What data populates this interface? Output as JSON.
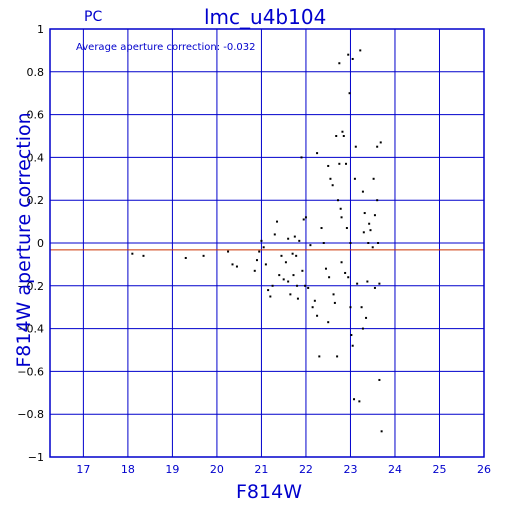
{
  "chart_data": {
    "type": "scatter",
    "panel_label": "PC",
    "title": "lmc_u4b104",
    "annotation": "Average aperture correction: -0.032",
    "xlabel": "F814W",
    "ylabel": "F814W aperture correction",
    "xlim": [
      16.25,
      26
    ],
    "ylim": [
      -1,
      1
    ],
    "xticks": [
      17,
      18,
      19,
      20,
      21,
      22,
      23,
      24,
      25,
      26
    ],
    "yticks": [
      -1,
      -0.8,
      -0.6,
      -0.4,
      -0.2,
      0,
      0.2,
      0.4,
      0.6,
      0.8,
      1
    ],
    "ytick_labels": [
      "−1",
      "−0.8",
      "−0.6",
      "−0.4",
      "−0.2",
      "0",
      "0.2",
      "0.4",
      "0.6",
      "0.8",
      "1"
    ],
    "grid": true,
    "reference_lines": [
      {
        "y": 0,
        "color": "#0000cc"
      },
      {
        "y": -0.032,
        "color": "#cc3300"
      }
    ],
    "colors": {
      "frame": "#0000cc",
      "text": "#0000cc",
      "points": "#000000",
      "average_line": "#cc3300"
    },
    "points": [
      [
        18.1,
        -0.05
      ],
      [
        18.35,
        -0.06
      ],
      [
        19.3,
        -0.07
      ],
      [
        19.7,
        -0.06
      ],
      [
        20.25,
        -0.04
      ],
      [
        20.35,
        -0.1
      ],
      [
        20.45,
        -0.11
      ],
      [
        20.85,
        -0.13
      ],
      [
        20.9,
        -0.08
      ],
      [
        20.95,
        -0.04
      ],
      [
        21.0,
        0.01
      ],
      [
        21.05,
        -0.02
      ],
      [
        21.1,
        -0.1
      ],
      [
        21.15,
        -0.22
      ],
      [
        21.2,
        -0.25
      ],
      [
        21.25,
        -0.2
      ],
      [
        21.3,
        0.04
      ],
      [
        21.35,
        0.1
      ],
      [
        21.4,
        -0.15
      ],
      [
        21.45,
        -0.06
      ],
      [
        21.5,
        -0.17
      ],
      [
        21.55,
        -0.09
      ],
      [
        21.6,
        0.02
      ],
      [
        21.6,
        -0.18
      ],
      [
        21.65,
        -0.24
      ],
      [
        21.7,
        -0.05
      ],
      [
        21.72,
        -0.15
      ],
      [
        21.75,
        0.03
      ],
      [
        21.78,
        -0.06
      ],
      [
        21.8,
        -0.2
      ],
      [
        21.82,
        -0.26
      ],
      [
        21.85,
        0.01
      ],
      [
        21.9,
        0.4
      ],
      [
        21.92,
        -0.13
      ],
      [
        21.95,
        0.11
      ],
      [
        21.98,
        -0.2
      ],
      [
        22.0,
        0.12
      ],
      [
        22.05,
        -0.21
      ],
      [
        22.1,
        -0.01
      ],
      [
        22.15,
        -0.3
      ],
      [
        22.2,
        -0.27
      ],
      [
        22.25,
        0.42
      ],
      [
        22.25,
        -0.34
      ],
      [
        22.3,
        -0.53
      ],
      [
        22.35,
        0.07
      ],
      [
        22.4,
        0.0
      ],
      [
        22.45,
        -0.12
      ],
      [
        22.5,
        -0.37
      ],
      [
        22.5,
        0.36
      ],
      [
        22.52,
        -0.16
      ],
      [
        22.55,
        0.3
      ],
      [
        22.6,
        0.27
      ],
      [
        22.62,
        -0.24
      ],
      [
        22.65,
        -0.28
      ],
      [
        22.68,
        0.5
      ],
      [
        22.7,
        -0.53
      ],
      [
        22.72,
        0.2
      ],
      [
        22.75,
        0.84
      ],
      [
        22.75,
        0.37
      ],
      [
        22.78,
        0.16
      ],
      [
        22.8,
        -0.09
      ],
      [
        22.8,
        0.12
      ],
      [
        22.82,
        0.52
      ],
      [
        22.85,
        0.5
      ],
      [
        22.88,
        -0.14
      ],
      [
        22.9,
        0.37
      ],
      [
        22.92,
        0.07
      ],
      [
        22.95,
        0.88
      ],
      [
        22.95,
        -0.16
      ],
      [
        22.98,
        0.7
      ],
      [
        23.0,
        0.0
      ],
      [
        23.0,
        -0.3
      ],
      [
        23.02,
        -0.43
      ],
      [
        23.05,
        0.86
      ],
      [
        23.05,
        -0.48
      ],
      [
        23.08,
        -0.73
      ],
      [
        23.1,
        0.3
      ],
      [
        23.12,
        0.45
      ],
      [
        23.15,
        -0.19
      ],
      [
        23.2,
        -0.74
      ],
      [
        23.22,
        0.9
      ],
      [
        23.25,
        -0.3
      ],
      [
        23.28,
        -0.4
      ],
      [
        23.3,
        0.05
      ],
      [
        23.32,
        0.14
      ],
      [
        23.35,
        -0.35
      ],
      [
        23.4,
        0.0
      ],
      [
        23.42,
        0.09
      ],
      [
        23.45,
        0.06
      ],
      [
        23.5,
        -0.02
      ],
      [
        23.52,
        0.3
      ],
      [
        23.55,
        0.13
      ],
      [
        23.55,
        -0.21
      ],
      [
        23.6,
        0.45
      ],
      [
        23.62,
        0.0
      ],
      [
        23.65,
        -0.19
      ],
      [
        23.65,
        -0.64
      ],
      [
        23.68,
        0.47
      ],
      [
        23.7,
        -0.88
      ],
      [
        23.6,
        0.2
      ],
      [
        23.38,
        -0.18
      ],
      [
        23.28,
        0.24
      ]
    ]
  }
}
